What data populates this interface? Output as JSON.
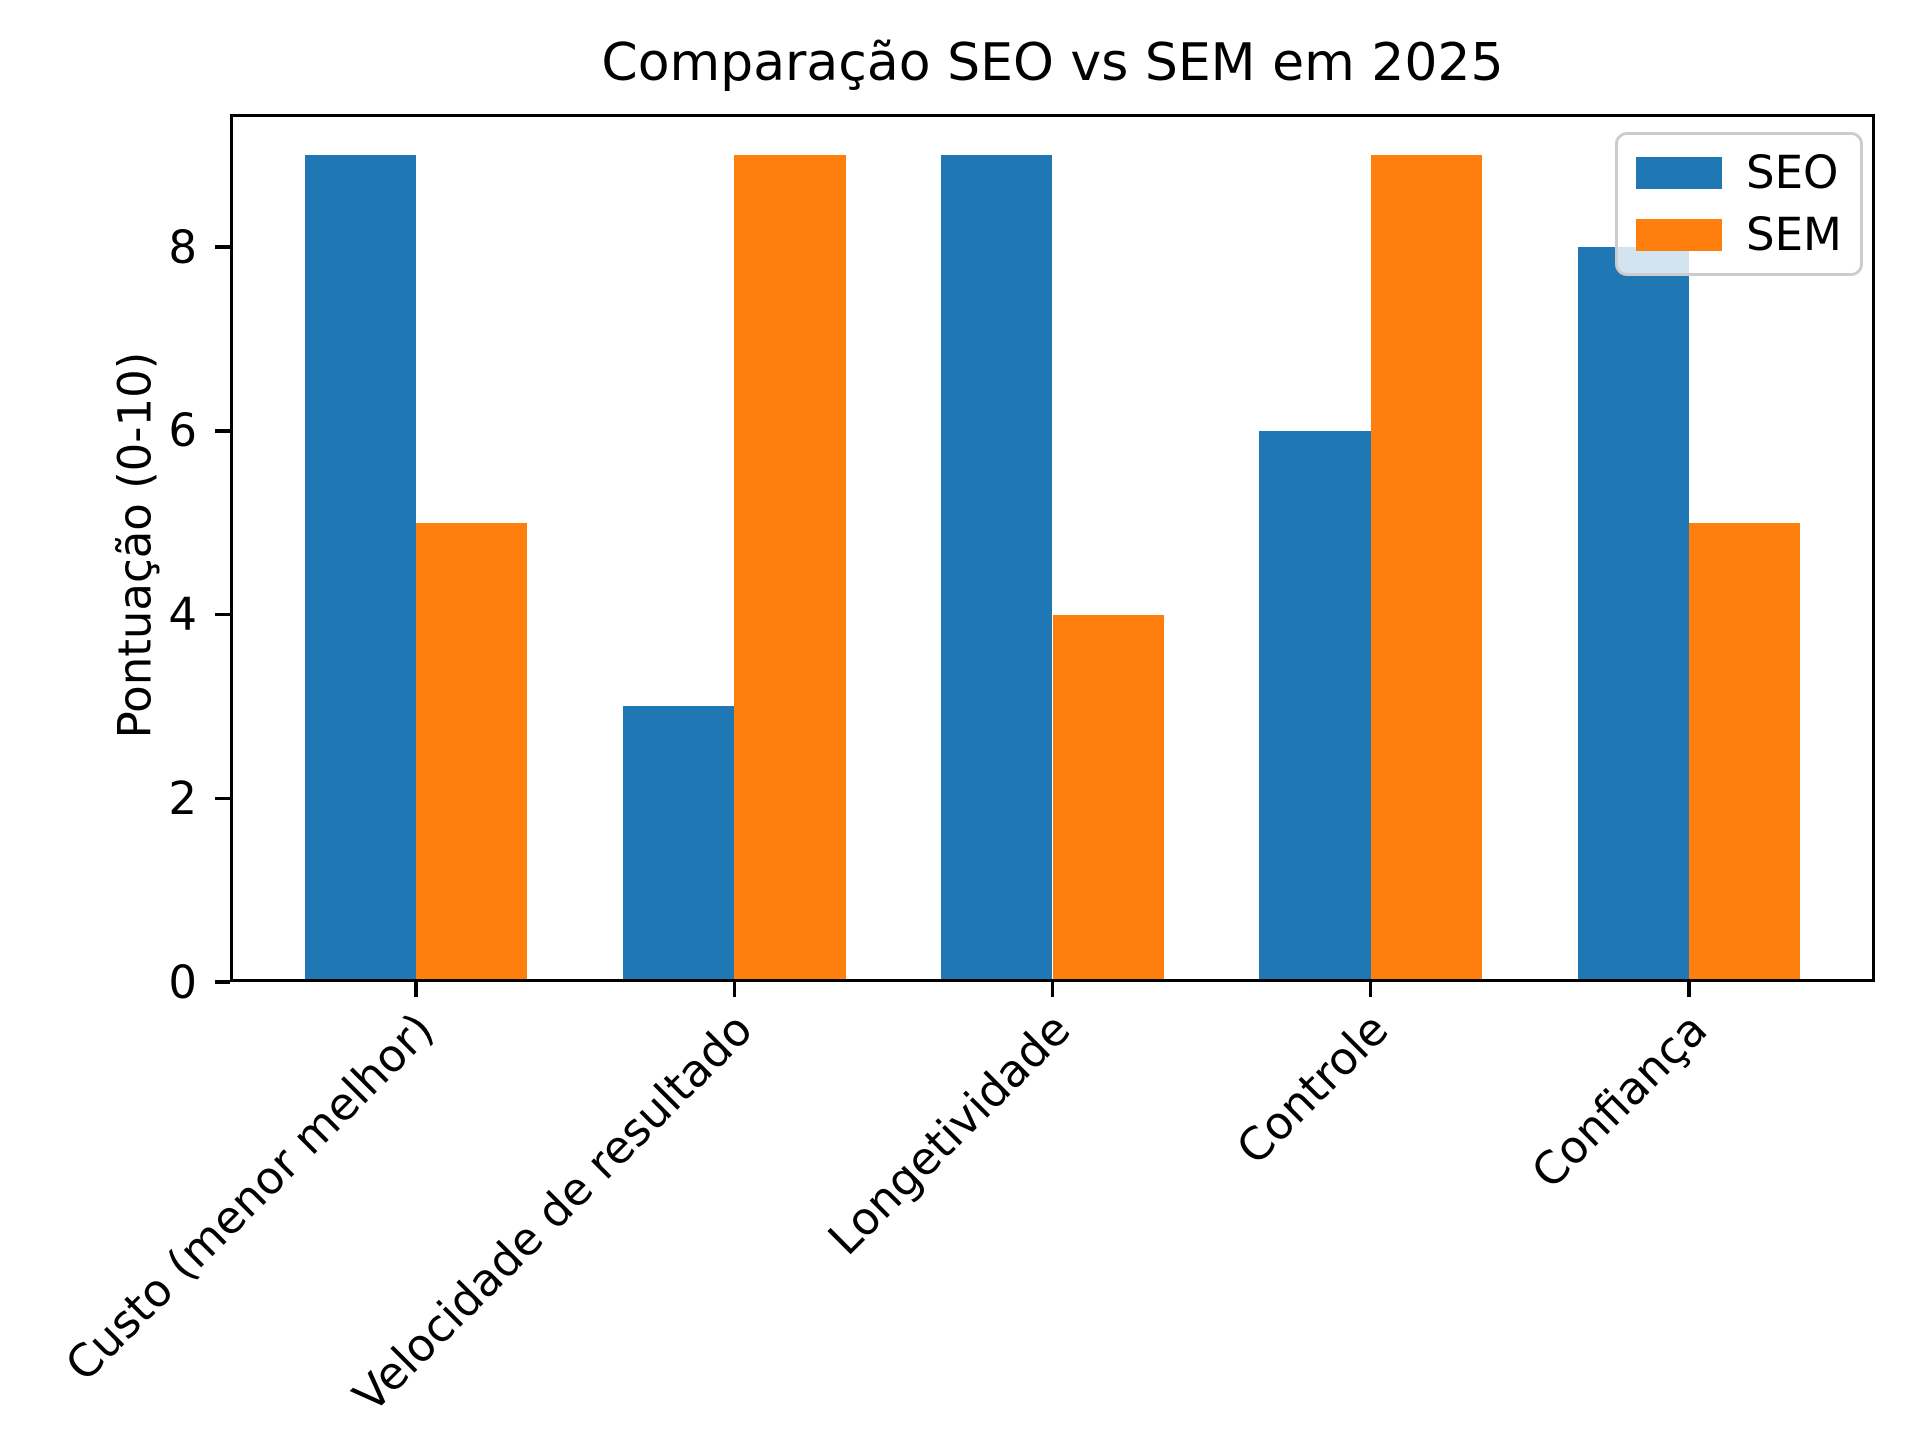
{
  "chart_data": {
    "type": "bar",
    "title": "Comparação SEO vs SEM em 2025",
    "ylabel": "Pontuação (0-10)",
    "xlabel": "",
    "categories": [
      "Custo (menor melhor)",
      "Velocidade de resultado",
      "Longetividade",
      "Controle",
      "Confiança"
    ],
    "series": [
      {
        "name": "SEO",
        "color": "#1f77b4",
        "values": [
          9,
          3,
          9,
          6,
          8
        ]
      },
      {
        "name": "SEM",
        "color": "#ff7f0e",
        "values": [
          5,
          9,
          4,
          9,
          5
        ]
      }
    ],
    "yticks": [
      0,
      2,
      4,
      6,
      8
    ],
    "ylim": [
      0,
      9.45
    ],
    "bar_width": 0.35,
    "grid": false,
    "legend_position": "upper right",
    "text_color": "#000000",
    "background_color": "#ffffff"
  }
}
